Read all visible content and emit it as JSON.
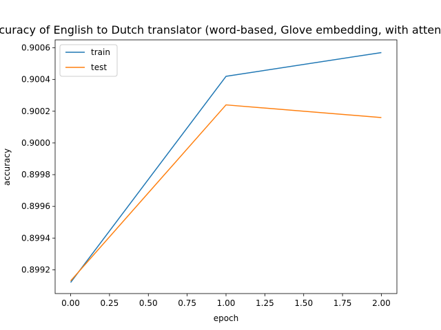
{
  "chart_data": {
    "type": "line",
    "title": "Accuracy of English to Dutch translator (word-based, Glove embedding, with attention)",
    "xlabel": "epoch",
    "ylabel": "accuracy",
    "x": [
      0,
      1,
      2
    ],
    "xlim": [
      -0.1,
      2.1
    ],
    "ylim": [
      0.89905,
      0.90065
    ],
    "xticks": [
      0.0,
      0.25,
      0.5,
      0.75,
      1.0,
      1.25,
      1.5,
      1.75,
      2.0
    ],
    "xtick_labels": [
      "0.00",
      "0.25",
      "0.50",
      "0.75",
      "1.00",
      "1.25",
      "1.50",
      "1.75",
      "2.00"
    ],
    "yticks": [
      0.8992,
      0.8994,
      0.8996,
      0.8998,
      0.9,
      0.9002,
      0.9004,
      0.9006
    ],
    "ytick_labels": [
      "0.8992",
      "0.8994",
      "0.8996",
      "0.8998",
      "0.9000",
      "0.9002",
      "0.9004",
      "0.9006"
    ],
    "grid": false,
    "legend_position": "upper-left",
    "series": [
      {
        "name": "train",
        "color": "#1f77b4",
        "values": [
          0.89912,
          0.90042,
          0.90057
        ]
      },
      {
        "name": "test",
        "color": "#ff7f0e",
        "values": [
          0.89913,
          0.90024,
          0.90016
        ]
      }
    ]
  }
}
